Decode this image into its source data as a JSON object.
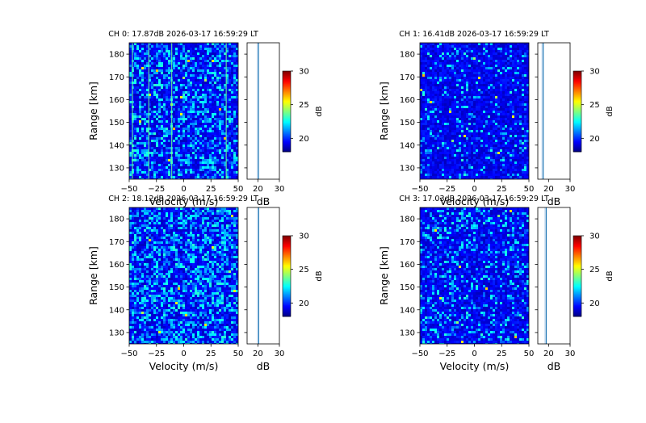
{
  "chart_data": [
    {
      "type": "heatmap",
      "title": "CH 0: 17.87dB 2026-03-17 16:59:29 LT",
      "xlabel": "Velocity (m/s)",
      "ylabel": "Range [km]",
      "xlim": [
        -50,
        50
      ],
      "ylim": [
        125,
        185
      ],
      "xticks": [
        -50,
        -25,
        0,
        25,
        50
      ],
      "yticks": [
        130,
        140,
        150,
        160,
        170,
        180
      ],
      "profile_xlabel": "dB",
      "profile_xlim": [
        15,
        30
      ],
      "profile_xticks": [
        20,
        30
      ],
      "profile_value": 20.3,
      "colorbar_label": "dB",
      "colorbar_range": [
        18,
        30
      ],
      "colorbar_ticks": [
        20,
        25,
        30
      ],
      "noise_level": 0.35,
      "vertical_lines_velocity": [
        -47,
        -32,
        -11,
        39
      ]
    },
    {
      "type": "heatmap",
      "title": "CH 1: 16.41dB 2026-03-17 16:59:29 LT",
      "xlabel": "Velocity (m/s)",
      "ylabel": "Range [km]",
      "xlim": [
        -50,
        50
      ],
      "ylim": [
        125,
        185
      ],
      "xticks": [
        -50,
        -25,
        0,
        25,
        50
      ],
      "yticks": [
        130,
        140,
        150,
        160,
        170,
        180
      ],
      "profile_xlabel": "dB",
      "profile_xlim": [
        15,
        30
      ],
      "profile_xticks": [
        20,
        30
      ],
      "profile_value": 17.5,
      "colorbar_label": "dB",
      "colorbar_range": [
        18,
        30
      ],
      "colorbar_ticks": [
        20,
        25,
        30
      ],
      "noise_level": 0.12,
      "vertical_lines_velocity": []
    },
    {
      "type": "heatmap",
      "title": "CH 2: 18.12dB 2026-03-17 16:59:29 LT",
      "xlabel": "Velocity (m/s)",
      "ylabel": "Range [km]",
      "xlim": [
        -50,
        50
      ],
      "ylim": [
        125,
        185
      ],
      "xticks": [
        -50,
        -25,
        0,
        25,
        50
      ],
      "yticks": [
        130,
        140,
        150,
        160,
        170,
        180
      ],
      "profile_xlabel": "dB",
      "profile_xlim": [
        15,
        30
      ],
      "profile_xticks": [
        20,
        30
      ],
      "profile_value": 20.4,
      "colorbar_label": "dB",
      "colorbar_range": [
        18,
        30
      ],
      "colorbar_ticks": [
        20,
        25,
        30
      ],
      "noise_level": 0.42,
      "vertical_lines_velocity": []
    },
    {
      "type": "heatmap",
      "title": "CH 3: 17.03dB 2026-03-17 16:59:29 LT",
      "xlabel": "Velocity (m/s)",
      "ylabel": "Range [km]",
      "xlim": [
        -50,
        50
      ],
      "ylim": [
        125,
        185
      ],
      "xticks": [
        -50,
        -25,
        0,
        25,
        50
      ],
      "yticks": [
        130,
        140,
        150,
        160,
        170,
        180
      ],
      "profile_xlabel": "dB",
      "profile_xlim": [
        15,
        30
      ],
      "profile_xticks": [
        20,
        30
      ],
      "profile_value": 18.9,
      "colorbar_label": "dB",
      "colorbar_range": [
        18,
        30
      ],
      "colorbar_ticks": [
        20,
        25,
        30
      ],
      "noise_level": 0.22,
      "vertical_lines_velocity": []
    }
  ]
}
